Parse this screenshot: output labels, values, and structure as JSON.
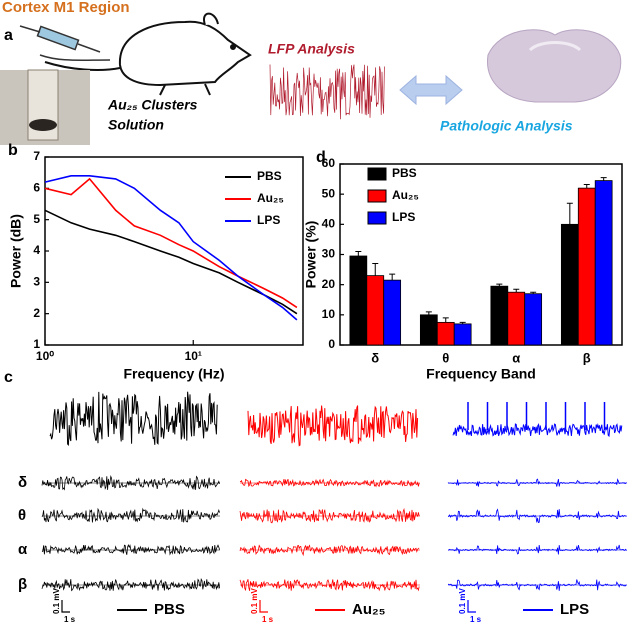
{
  "header": {
    "title": "Cortex M1 Region"
  },
  "panel_a": {
    "label": "a",
    "solution_line1": "Au₂₅ Clusters",
    "solution_line2": "Solution",
    "lfp": "LFP Analysis",
    "pathologic": "Pathologic Analysis"
  },
  "panel_c": {
    "label": "c",
    "bands": [
      "δ",
      "θ",
      "α",
      "β"
    ],
    "scale_v": "0.1 mV",
    "scale_t": "1 s",
    "groups": [
      {
        "name": "PBS",
        "color": "#000000"
      },
      {
        "name": "Au₂₅",
        "color": "#ff0000"
      },
      {
        "name": "LPS",
        "color": "#0000ff"
      }
    ]
  },
  "chart_data": [
    {
      "type": "line",
      "label": "b",
      "xlabel": "Frequency (Hz)",
      "ylabel": "Power (dB)",
      "xscale": "log",
      "x": [
        1,
        1.5,
        2,
        3,
        4,
        6,
        8,
        10,
        15,
        20,
        30,
        40,
        50
      ],
      "series": [
        {
          "name": "PBS",
          "color": "#000000",
          "values": [
            5.3,
            4.9,
            4.7,
            4.5,
            4.3,
            4.0,
            3.8,
            3.6,
            3.3,
            3.0,
            2.6,
            2.3,
            2.0
          ]
        },
        {
          "name": "Au₂₅",
          "color": "#ff0000",
          "values": [
            6.0,
            5.8,
            6.3,
            5.3,
            4.8,
            4.5,
            4.2,
            4.0,
            3.5,
            3.2,
            2.8,
            2.5,
            2.2
          ]
        },
        {
          "name": "LPS",
          "color": "#0000ff",
          "values": [
            6.2,
            6.4,
            6.4,
            6.3,
            6.0,
            5.3,
            4.9,
            4.3,
            3.7,
            3.2,
            2.6,
            2.2,
            1.8
          ]
        }
      ],
      "xlim": [
        1,
        55
      ],
      "xticks": [
        {
          "value": 1,
          "label": "10⁰"
        },
        {
          "value": 10,
          "label": "10¹"
        }
      ],
      "ylim": [
        1,
        7
      ],
      "yticks": [
        1,
        2,
        3,
        4,
        5,
        6,
        7
      ],
      "legend": "upper right"
    },
    {
      "type": "bar",
      "label": "d",
      "xlabel": "Frequency Band",
      "ylabel": "Power (%)",
      "categories": [
        "δ",
        "θ",
        "α",
        "β"
      ],
      "series": [
        {
          "name": "PBS",
          "color": "#000000",
          "values": [
            29.5,
            10,
            19.5,
            40
          ],
          "errors": [
            1.5,
            1,
            0.7,
            7
          ]
        },
        {
          "name": "Au₂₅",
          "color": "#ff0000",
          "values": [
            23,
            7.5,
            17.5,
            52
          ],
          "errors": [
            4,
            1.5,
            1,
            1.2
          ]
        },
        {
          "name": "LPS",
          "color": "#0000ff",
          "values": [
            21.5,
            7,
            17,
            54.5
          ],
          "errors": [
            2,
            0.5,
            0.5,
            1
          ]
        }
      ],
      "ylim": [
        0,
        60
      ],
      "yticks": [
        0,
        10,
        20,
        30,
        40,
        50,
        60
      ],
      "legend": "upper left"
    }
  ]
}
